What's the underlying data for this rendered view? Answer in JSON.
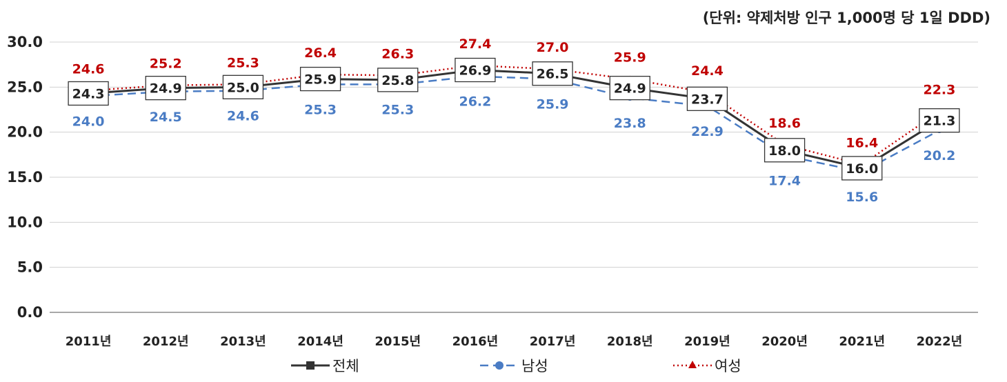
{
  "unit_note": "(단위: 약제처방 인구 1,000명 당 1일 DDD)",
  "colors": {
    "total": "#333333",
    "male": "#4a7cc4",
    "female": "#c00000",
    "grid": "#d0d0d0"
  },
  "chart_data": {
    "type": "line",
    "categories": [
      "2011년",
      "2012년",
      "2013년",
      "2014년",
      "2015년",
      "2016년",
      "2017년",
      "2018년",
      "2019년",
      "2020년",
      "2021년",
      "2022년"
    ],
    "ylim": [
      0,
      30
    ],
    "yticks": [
      "0.0",
      "5.0",
      "10.0",
      "15.0",
      "20.0",
      "25.0",
      "30.0"
    ],
    "grid": true,
    "legend_position": "bottom",
    "series": [
      {
        "name": "전체",
        "key": "total",
        "style": "solid-square",
        "values": [
          24.3,
          24.9,
          25.0,
          25.9,
          25.8,
          26.9,
          26.5,
          24.9,
          23.7,
          18.0,
          16.0,
          21.3
        ],
        "labels": [
          "24.3",
          "24.9",
          "25.0",
          "25.9",
          "25.8",
          "26.9",
          "26.5",
          "24.9",
          "23.7",
          "18.0",
          "16.0",
          "21.3"
        ]
      },
      {
        "name": "남성",
        "key": "male",
        "style": "dashed-circle",
        "values": [
          24.0,
          24.5,
          24.6,
          25.3,
          25.3,
          26.2,
          25.9,
          23.8,
          22.9,
          17.4,
          15.6,
          20.2
        ],
        "labels": [
          "24.0",
          "24.5",
          "24.6",
          "25.3",
          "25.3",
          "26.2",
          "25.9",
          "23.8",
          "22.9",
          "17.4",
          "15.6",
          "20.2"
        ]
      },
      {
        "name": "여성",
        "key": "female",
        "style": "dotted-triangle",
        "values": [
          24.6,
          25.2,
          25.3,
          26.4,
          26.3,
          27.4,
          27.0,
          25.9,
          24.4,
          18.6,
          16.4,
          22.3
        ],
        "labels": [
          "24.6",
          "25.2",
          "25.3",
          "26.4",
          "26.3",
          "27.4",
          "27.0",
          "25.9",
          "24.4",
          "18.6",
          "16.4",
          "22.3"
        ]
      }
    ]
  }
}
